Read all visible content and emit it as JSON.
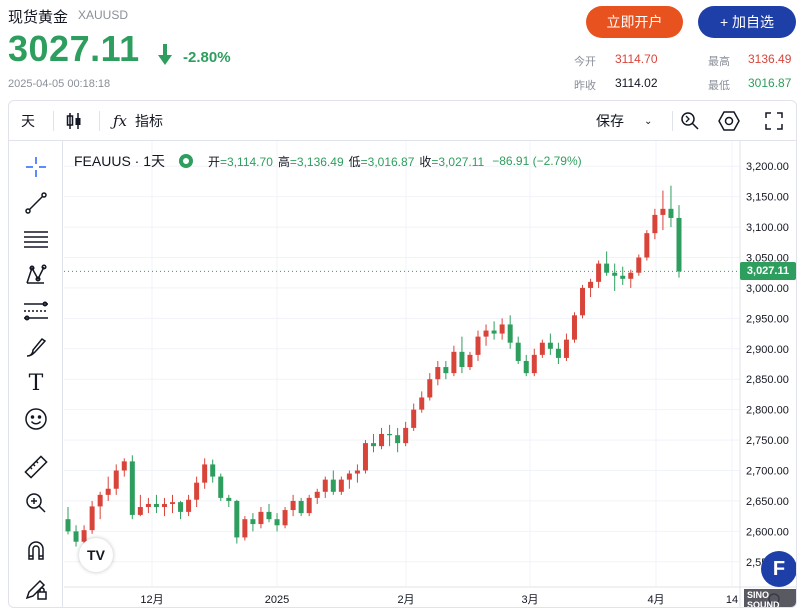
{
  "header": {
    "title": "现货黄金",
    "symbol": "XAUUSD",
    "price": "3027.11",
    "change_pct": "-2.80%",
    "datetime": "2025-04-05 00:18:18",
    "open_account_label": "立即开户",
    "add_watchlist_label": "+ 加自选",
    "stats": {
      "open_label": "今开",
      "open_value": "3114.70",
      "high_label": "最高",
      "high_value": "3136.49",
      "prev_close_label": "昨收",
      "prev_close_value": "3114.02",
      "low_label": "最低",
      "low_value": "3016.87"
    },
    "colors": {
      "up": "#2e9e5e",
      "down": "#d9443a",
      "open_btn": "#e8521e",
      "watch_btn": "#1e3fa8"
    }
  },
  "toolbar": {
    "interval_label": "天",
    "indicators_label": "指标",
    "save_label": "保存"
  },
  "sidebar": {
    "tools": [
      "crosshair-icon",
      "trendline-icon",
      "horizontal-lines-icon",
      "pattern-icon",
      "fib-icon",
      "brush-icon",
      "text-icon",
      "emoji-icon",
      "ruler-icon",
      "zoom-in-icon",
      "magnet-icon",
      "pencil-lock-icon"
    ]
  },
  "legend": {
    "symbol": "FEAUUS · 1天",
    "open_label": "开",
    "open": "3,114.70",
    "high_label": "高",
    "high": "3,136.49",
    "low_label": "低",
    "low": "3,016.87",
    "close_label": "收",
    "close": "3,027.11",
    "change": "−86.91 (−2.79%)"
  },
  "last_price_tag": "3,027.11",
  "tv_logo": "TV",
  "watermark": {
    "letter": "F",
    "text": "SINO SOUND"
  },
  "chart_data": {
    "type": "candlestick",
    "x_ticks": [
      "12月",
      "2025",
      "2月",
      "3月",
      "4月",
      "14"
    ],
    "y_ticks": [
      "3,200.00",
      "3,150.00",
      "3,100.00",
      "3,050.00",
      "3,000.00",
      "2,950.00",
      "2,900.00",
      "2,850.00",
      "2,800.00",
      "2,750.00",
      "2,700.00",
      "2,650.00",
      "2,600.00",
      "2,550.00"
    ],
    "ylim": [
      2525,
      3225
    ],
    "last_price": 3027.11,
    "candles": [
      [
        2620,
        2640,
        2595,
        2600
      ],
      [
        2600,
        2610,
        2575,
        2583
      ],
      [
        2583,
        2610,
        2570,
        2602
      ],
      [
        2602,
        2650,
        2596,
        2641
      ],
      [
        2641,
        2665,
        2620,
        2660
      ],
      [
        2660,
        2690,
        2650,
        2670
      ],
      [
        2670,
        2710,
        2660,
        2700
      ],
      [
        2700,
        2720,
        2690,
        2715
      ],
      [
        2715,
        2725,
        2620,
        2627
      ],
      [
        2627,
        2660,
        2625,
        2640
      ],
      [
        2640,
        2655,
        2630,
        2645
      ],
      [
        2645,
        2660,
        2630,
        2640
      ],
      [
        2640,
        2655,
        2625,
        2645
      ],
      [
        2645,
        2660,
        2630,
        2648
      ],
      [
        2648,
        2650,
        2620,
        2632
      ],
      [
        2632,
        2660,
        2625,
        2652
      ],
      [
        2652,
        2690,
        2640,
        2680
      ],
      [
        2680,
        2720,
        2670,
        2710
      ],
      [
        2710,
        2718,
        2680,
        2690
      ],
      [
        2690,
        2695,
        2650,
        2655
      ],
      [
        2655,
        2660,
        2640,
        2650
      ],
      [
        2650,
        2652,
        2580,
        2590
      ],
      [
        2590,
        2625,
        2585,
        2620
      ],
      [
        2620,
        2630,
        2600,
        2612
      ],
      [
        2612,
        2640,
        2605,
        2632
      ],
      [
        2632,
        2645,
        2615,
        2620
      ],
      [
        2620,
        2630,
        2600,
        2610
      ],
      [
        2610,
        2640,
        2605,
        2635
      ],
      [
        2635,
        2660,
        2625,
        2650
      ],
      [
        2650,
        2655,
        2625,
        2630
      ],
      [
        2630,
        2660,
        2625,
        2655
      ],
      [
        2655,
        2670,
        2645,
        2665
      ],
      [
        2665,
        2690,
        2655,
        2685
      ],
      [
        2685,
        2700,
        2660,
        2665
      ],
      [
        2665,
        2690,
        2660,
        2685
      ],
      [
        2685,
        2700,
        2670,
        2695
      ],
      [
        2695,
        2710,
        2680,
        2700
      ],
      [
        2700,
        2750,
        2695,
        2745
      ],
      [
        2745,
        2760,
        2730,
        2740
      ],
      [
        2740,
        2770,
        2735,
        2760
      ],
      [
        2760,
        2775,
        2740,
        2758
      ],
      [
        2758,
        2770,
        2730,
        2745
      ],
      [
        2745,
        2780,
        2740,
        2770
      ],
      [
        2770,
        2810,
        2765,
        2800
      ],
      [
        2800,
        2830,
        2795,
        2820
      ],
      [
        2820,
        2860,
        2815,
        2850
      ],
      [
        2850,
        2880,
        2840,
        2870
      ],
      [
        2870,
        2880,
        2850,
        2860
      ],
      [
        2860,
        2905,
        2855,
        2895
      ],
      [
        2895,
        2920,
        2860,
        2870
      ],
      [
        2870,
        2895,
        2865,
        2890
      ],
      [
        2890,
        2930,
        2880,
        2920
      ],
      [
        2920,
        2940,
        2905,
        2930
      ],
      [
        2930,
        2945,
        2915,
        2925
      ],
      [
        2925,
        2950,
        2915,
        2940
      ],
      [
        2940,
        2955,
        2900,
        2910
      ],
      [
        2910,
        2920,
        2875,
        2880
      ],
      [
        2880,
        2890,
        2855,
        2860
      ],
      [
        2860,
        2900,
        2855,
        2890
      ],
      [
        2890,
        2915,
        2885,
        2910
      ],
      [
        2910,
        2925,
        2890,
        2900
      ],
      [
        2900,
        2910,
        2875,
        2885
      ],
      [
        2885,
        2925,
        2880,
        2915
      ],
      [
        2915,
        2960,
        2910,
        2955
      ],
      [
        2955,
        3005,
        2950,
        3000
      ],
      [
        3000,
        3015,
        2985,
        3010
      ],
      [
        3010,
        3045,
        3000,
        3040
      ],
      [
        3040,
        3060,
        3020,
        3025
      ],
      [
        3025,
        3040,
        2995,
        3020
      ],
      [
        3020,
        3035,
        3005,
        3015
      ],
      [
        3015,
        3030,
        3000,
        3025
      ],
      [
        3025,
        3055,
        3020,
        3050
      ],
      [
        3050,
        3095,
        3045,
        3090
      ],
      [
        3090,
        3130,
        3080,
        3120
      ],
      [
        3120,
        3160,
        3095,
        3130
      ],
      [
        3130,
        3168,
        3100,
        3115
      ],
      [
        3115,
        3136,
        3017,
        3027
      ]
    ]
  }
}
